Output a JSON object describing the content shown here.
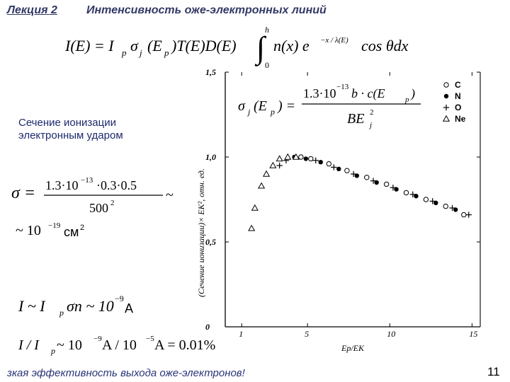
{
  "header": {
    "lecture": "Лекция 2",
    "title": "Интенсивность оже-электронных линий"
  },
  "formula_main": {
    "lhs": "I(E) = I",
    "sub_p": "p",
    "sigma": "σ",
    "sub_j": "j",
    "mid": "(E",
    "sub_p2": "p",
    "rest": ")T(E)D(E)",
    "integral_upper": "h",
    "integral_lower": "0",
    "integrand": "n(x) e",
    "exponent": "−x / λ(E)",
    "tail": "cos θdx"
  },
  "section_label": {
    "line1": "Сечение ионизации",
    "line2": "электронным ударом"
  },
  "cross_section_formula": {
    "lhs": "σ",
    "sub": "j",
    "arg": "(E",
    "arg_sub": "p",
    "arg_close": ") =",
    "numerator": "1.3·10",
    "num_exp": "−13",
    "num_rest": " b · c(E",
    "num_sub": "p",
    "num_close": ")",
    "denominator": "BE",
    "den_sup": "2",
    "den_sub": "j"
  },
  "sigma_estimate": {
    "lhs": "σ =",
    "numerator": "1.3·10",
    "num_exp": "−13",
    "num_rest": "·0.3·0.5",
    "denominator": "500",
    "den_sup": "2",
    "approx": "~",
    "result": "~ 10",
    "result_exp": "−19",
    "unit": "см",
    "unit_sup": "2"
  },
  "current_estimate": {
    "text": "I ~ I",
    "sub": "p",
    "rest": "σn ~ 10",
    "exp": "−9",
    "unit": "A"
  },
  "ratio_estimate": {
    "text": "I / I",
    "sub": "p",
    "rest1": " ~ 10",
    "exp1": "−9",
    "rest2": " A / 10",
    "exp2": "−5",
    "rest3": " A = 0.01%"
  },
  "footer": {
    "text": "зкая эффективность выхода оже-электронов!",
    "page": "11"
  },
  "chart_data": {
    "type": "scatter",
    "xlabel": "Ep/EK",
    "ylabel": "(Сечение ионизации)× EK², отн. ед.",
    "xlim": [
      0,
      15.5
    ],
    "ylim": [
      0,
      1.5
    ],
    "x_ticks": [
      "1",
      "5",
      "10",
      "15"
    ],
    "x_tick_values": [
      1,
      5,
      10,
      15
    ],
    "y_ticks": [
      "0",
      "0,5",
      "1,0",
      "1,5"
    ],
    "y_tick_values": [
      0,
      0.5,
      1.0,
      1.5
    ],
    "legend": [
      "C",
      "N",
      "O",
      "Ne"
    ],
    "legend_placement": "top-right",
    "series": [
      {
        "name": "C",
        "marker": "circle-open",
        "x": [
          4.6,
          5.2,
          6.3,
          7.4,
          8.6,
          9.8,
          11.0,
          12.2,
          13.4,
          14.5
        ],
        "y": [
          1.0,
          0.99,
          0.96,
          0.92,
          0.88,
          0.84,
          0.79,
          0.75,
          0.71,
          0.66
        ]
      },
      {
        "name": "N",
        "marker": "circle-filled",
        "x": [
          4.2,
          4.9,
          5.8,
          6.9,
          8.0,
          9.2,
          10.4,
          11.6,
          12.8,
          14.0
        ],
        "y": [
          1.0,
          0.99,
          0.97,
          0.93,
          0.89,
          0.85,
          0.81,
          0.77,
          0.73,
          0.69
        ]
      },
      {
        "name": "O",
        "marker": "plus",
        "x": [
          3.3,
          3.7,
          5.5,
          6.6,
          7.8,
          9.0,
          10.2,
          11.4,
          12.6,
          13.8,
          14.8
        ],
        "y": [
          0.95,
          0.98,
          0.98,
          0.94,
          0.9,
          0.86,
          0.82,
          0.78,
          0.74,
          0.7,
          0.66
        ]
      },
      {
        "name": "Ne",
        "marker": "triangle-open",
        "x": [
          1.6,
          1.8,
          2.2,
          2.5,
          2.9,
          3.3,
          3.8,
          4.3
        ],
        "y": [
          0.58,
          0.7,
          0.83,
          0.9,
          0.95,
          0.99,
          1.0,
          1.0
        ]
      }
    ]
  }
}
